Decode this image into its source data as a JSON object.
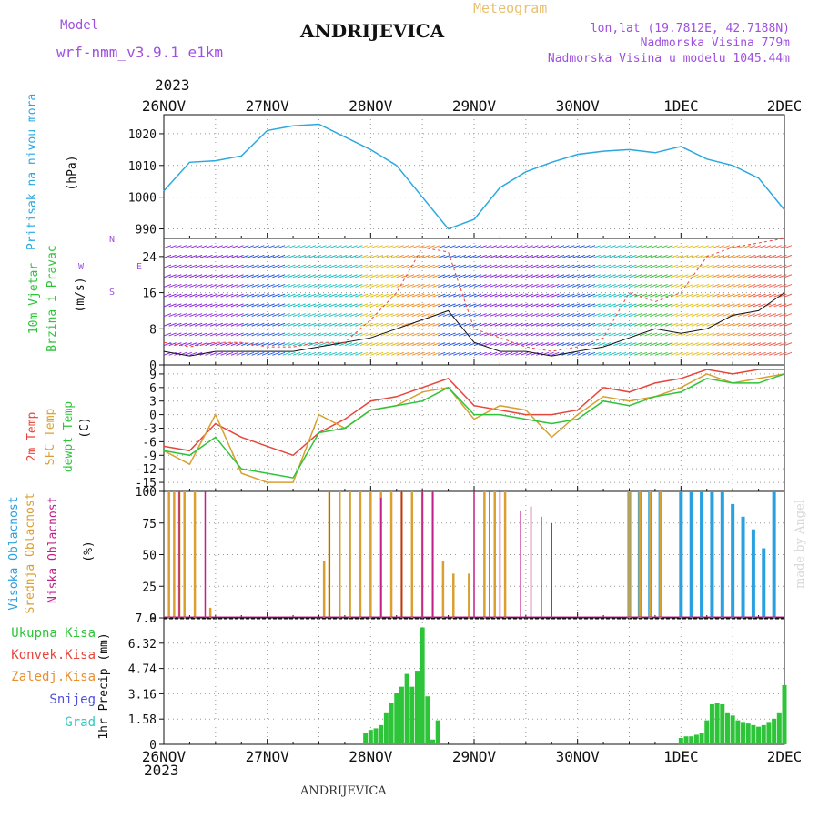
{
  "header": {
    "model_label": "Model",
    "model_name": "wrf-nmm_v3.9.1  e1km",
    "station": "ANDRIJEVICA",
    "chart_kind": "Meteogram",
    "lonlat": "lon,lat (19.7812E, 42.7188N)",
    "altitude": "Nadmorska Visina 779m",
    "model_altitude": "Nadmorska Visina u modelu 1045.44m",
    "year_top": "2023",
    "year_bottom": "2023",
    "footer_station": "ANDRIJEVICA",
    "watermark": "made by Angel"
  },
  "colors": {
    "pressure": "#29a8e0",
    "t2m": "#e8453c",
    "sfc": "#d9a030",
    "dewpt": "#2ec43a",
    "high_cloud": "#29a0e0",
    "mid_cloud": "#d9a030",
    "low_cloud": "#c0208a",
    "precip": "#2ec43a",
    "purple": "#a050e0"
  },
  "chart_data": [
    {
      "type": "line",
      "panel": "pressure",
      "title": "",
      "ylabel_lines": [
        "Pritisak na nivou mora",
        "(hPa)"
      ],
      "x_ticks": [
        "26NOV",
        "27NOV",
        "28NOV",
        "29NOV",
        "30NOV",
        "1DEC",
        "2DEC"
      ],
      "y_ticks": [
        "990",
        "1000",
        "1010",
        "1020"
      ],
      "ylim": [
        987,
        1026
      ],
      "grid": true,
      "series": [
        {
          "name": "Pritisak na nivou mora",
          "x": [
            0,
            0.25,
            0.5,
            0.75,
            1.0,
            1.25,
            1.5,
            1.75,
            2.0,
            2.25,
            2.5,
            2.75,
            3.0,
            3.25,
            3.5,
            3.75,
            4.0,
            4.25,
            4.5,
            4.75,
            5.0,
            5.25,
            5.5,
            5.75,
            6.0
          ],
          "values": [
            1002,
            1011,
            1011.5,
            1013,
            1021,
            1022.5,
            1023,
            1019,
            1015,
            1010,
            1000,
            990,
            993,
            1003,
            1008,
            1011,
            1013.5,
            1014.5,
            1015,
            1014,
            1016,
            1012,
            1010,
            1006,
            996
          ]
        }
      ]
    },
    {
      "type": "line",
      "panel": "wind",
      "ylabel_lines": [
        "10m Vjetar",
        "Brzina i Pravac",
        "(m/s)"
      ],
      "compass_labels": [
        "N",
        "W",
        "E",
        "S"
      ],
      "y_ticks": [
        "0",
        "8",
        "16",
        "24"
      ],
      "ylim": [
        0,
        28
      ],
      "grid": true,
      "series": [
        {
          "name": "speed",
          "x": [
            0,
            0.25,
            0.5,
            0.75,
            1.0,
            1.25,
            1.5,
            1.75,
            2.0,
            2.25,
            2.5,
            2.75,
            3.0,
            3.25,
            3.5,
            3.75,
            4.0,
            4.25,
            4.5,
            4.75,
            5.0,
            5.25,
            5.5,
            5.75,
            6.0
          ],
          "values": [
            3,
            2,
            3,
            3,
            3,
            3,
            4,
            5,
            6,
            8,
            10,
            12,
            5,
            3,
            3,
            2,
            3,
            4,
            6,
            8,
            7,
            8,
            11,
            12,
            16
          ]
        },
        {
          "name": "gust",
          "x": [
            0,
            0.25,
            0.5,
            0.75,
            1.0,
            1.25,
            1.5,
            1.75,
            2.0,
            2.25,
            2.5,
            2.75,
            3.0,
            3.25,
            3.5,
            3.75,
            4.0,
            4.25,
            4.5,
            4.75,
            5.0,
            5.25,
            5.5,
            5.75,
            6.0
          ],
          "values": [
            5,
            4,
            5,
            5,
            4,
            4,
            5,
            5,
            10,
            16,
            26,
            25,
            8,
            6,
            4,
            3,
            4,
            6,
            16,
            14,
            16,
            24,
            26,
            27,
            28
          ]
        }
      ]
    },
    {
      "type": "line",
      "panel": "temperature",
      "ylabel_lines": [
        "2m Temp",
        "SFC Temp",
        "dewpt Temp",
        "(C)"
      ],
      "y_ticks": [
        "-15",
        "-12",
        "-9",
        "-6",
        "-3",
        "0",
        "3",
        "6",
        "9"
      ],
      "ylim": [
        -17,
        11
      ],
      "grid": true,
      "series": [
        {
          "name": "2m Temp",
          "x": [
            0,
            0.25,
            0.5,
            0.75,
            1.0,
            1.25,
            1.5,
            1.75,
            2.0,
            2.25,
            2.5,
            2.75,
            3.0,
            3.25,
            3.5,
            3.75,
            4.0,
            4.25,
            4.5,
            4.75,
            5.0,
            5.25,
            5.5,
            5.75,
            6.0
          ],
          "values": [
            -7,
            -8,
            -2,
            -5,
            -7,
            -9,
            -4,
            -1,
            3,
            4,
            6,
            8,
            2,
            1,
            0,
            0,
            1,
            6,
            5,
            7,
            8,
            10,
            9,
            10,
            10
          ]
        },
        {
          "name": "SFC Temp",
          "x": [
            0,
            0.25,
            0.5,
            0.75,
            1.0,
            1.25,
            1.5,
            1.75,
            2.0,
            2.25,
            2.5,
            2.75,
            3.0,
            3.25,
            3.5,
            3.75,
            4.0,
            4.25,
            4.5,
            4.75,
            5.0,
            5.25,
            5.5,
            5.75,
            6.0
          ],
          "values": [
            -8,
            -11,
            0,
            -13,
            -15,
            -15,
            0,
            -3,
            1,
            2,
            5,
            6,
            -1,
            2,
            1,
            -5,
            0,
            4,
            3,
            4,
            6,
            9,
            7,
            8,
            9
          ]
        },
        {
          "name": "dewpt Temp",
          "x": [
            0,
            0.25,
            0.5,
            0.75,
            1.0,
            1.25,
            1.5,
            1.75,
            2.0,
            2.25,
            2.5,
            2.75,
            3.0,
            3.25,
            3.5,
            3.75,
            4.0,
            4.25,
            4.5,
            4.75,
            5.0,
            5.25,
            5.5,
            5.75,
            6.0
          ],
          "values": [
            -8,
            -9,
            -5,
            -12,
            -13,
            -14,
            -4,
            -3,
            1,
            2,
            3,
            6,
            0,
            0,
            -1,
            -2,
            -1,
            3,
            2,
            4,
            5,
            8,
            7,
            7,
            9
          ]
        }
      ]
    },
    {
      "type": "bar",
      "panel": "clouds",
      "ylabel_lines": [
        "Visoka Oblacnost",
        "Srednja Oblacnost",
        "Niska Oblacnost",
        "(%)"
      ],
      "y_ticks": [
        "0",
        "25",
        "50",
        "75",
        "100"
      ],
      "ylim": [
        0,
        100
      ],
      "grid": true,
      "series": [
        {
          "name": "Visoka Oblacnost",
          "x": [
            4.5,
            4.6,
            4.7,
            4.8,
            5.0,
            5.1,
            5.2,
            5.3,
            5.4,
            5.5,
            5.6,
            5.7,
            5.8,
            5.9
          ],
          "values": [
            100,
            100,
            100,
            100,
            100,
            100,
            100,
            100,
            100,
            90,
            80,
            70,
            55,
            100
          ]
        },
        {
          "name": "Srednja Oblacnost",
          "x": [
            0.05,
            0.1,
            0.15,
            0.2,
            0.3,
            0.45,
            1.55,
            1.6,
            1.7,
            1.8,
            1.9,
            2.0,
            2.1,
            2.2,
            2.3,
            2.4,
            2.5,
            2.6,
            2.7,
            2.8,
            2.95,
            3.1,
            3.2,
            3.3,
            4.5,
            4.6,
            4.7,
            4.8
          ],
          "values": [
            100,
            100,
            100,
            100,
            100,
            8,
            45,
            100,
            100,
            100,
            100,
            100,
            100,
            100,
            100,
            100,
            100,
            100,
            45,
            35,
            35,
            100,
            100,
            100,
            100,
            100,
            100,
            100
          ]
        },
        {
          "name": "Niska Oblacnost",
          "x": [
            0.15,
            0.4,
            1.6,
            2.1,
            2.3,
            2.5,
            2.6,
            3.0,
            3.15,
            3.25,
            3.45,
            3.55,
            3.65,
            3.75
          ],
          "values": [
            100,
            100,
            100,
            95,
            100,
            100,
            100,
            100,
            100,
            100,
            85,
            88,
            80,
            75
          ]
        }
      ]
    },
    {
      "type": "bar",
      "panel": "precip",
      "ylabel_lines": [
        "1hr Precip (mm)"
      ],
      "legend": [
        "Ukupna Kisa",
        "Konvek.Kisa",
        "Zaledj.Kisa",
        "Snijeg",
        "Grad"
      ],
      "legend_colors": [
        "#2ec43a",
        "#e8453c",
        "#e89030",
        "#5050e0",
        "#30c8c0"
      ],
      "y_ticks": [
        "0",
        "1.58",
        "3.16",
        "4.74",
        "6.32",
        "7.9"
      ],
      "ylim": [
        0,
        7.9
      ],
      "grid": true,
      "series": [
        {
          "name": "Ukupna Kisa",
          "x": [
            1.95,
            2.0,
            2.05,
            2.1,
            2.15,
            2.2,
            2.25,
            2.3,
            2.35,
            2.4,
            2.45,
            2.5,
            2.55,
            2.6,
            2.65,
            5.0,
            5.05,
            5.1,
            5.15,
            5.2,
            5.25,
            5.3,
            5.35,
            5.4,
            5.45,
            5.5,
            5.55,
            5.6,
            5.65,
            5.7,
            5.75,
            5.8,
            5.85,
            5.9,
            5.95,
            6.0
          ],
          "values": [
            0.7,
            0.9,
            1.0,
            1.2,
            2.0,
            2.6,
            3.2,
            3.6,
            4.4,
            3.6,
            4.6,
            7.3,
            3.0,
            0.3,
            1.5,
            0.4,
            0.5,
            0.5,
            0.6,
            0.7,
            1.5,
            2.5,
            2.6,
            2.5,
            2.0,
            1.8,
            1.5,
            1.4,
            1.3,
            1.2,
            1.1,
            1.2,
            1.4,
            1.6,
            2.0,
            3.7
          ]
        }
      ]
    }
  ]
}
